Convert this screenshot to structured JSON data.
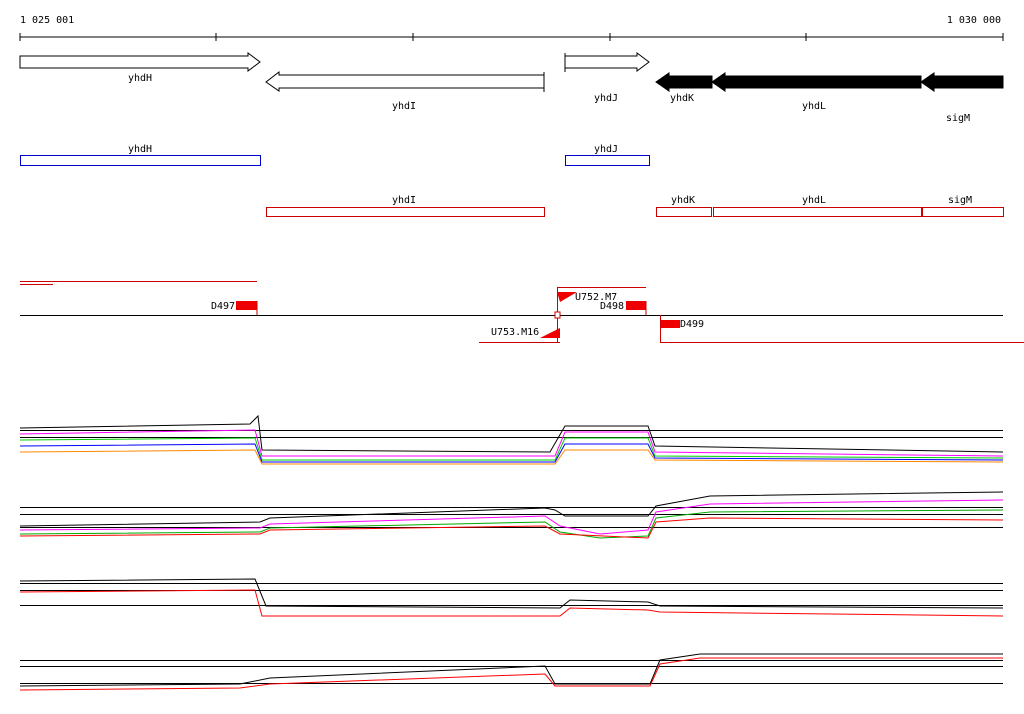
{
  "ruler": {
    "start": "1 025 001",
    "end": "1 030 000"
  },
  "annotated_genes": [
    "yhdH",
    "yhdI",
    "yhdJ",
    "yhdK",
    "yhdL",
    "sigM"
  ],
  "forward_transcripts": [
    "yhdH",
    "yhdJ"
  ],
  "reverse_transcripts": [
    "yhdI",
    "yhdK",
    "yhdL",
    "sigM"
  ],
  "features": [
    "D497",
    "U752.M7",
    "D498",
    "U753.M16",
    "D499"
  ]
}
